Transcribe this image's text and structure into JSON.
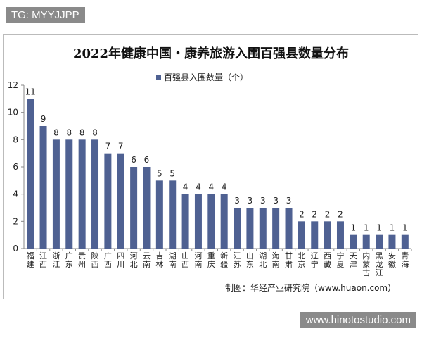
{
  "watermarks": {
    "top_left": "TG: MYYJJPP",
    "bottom_right": "www.hinotostudio.com"
  },
  "source": "制图：华经产业研究院（www.huaon.com）",
  "chart_data": {
    "type": "bar",
    "title": "2022年健康中国・康养旅游入围百强县数量分布",
    "xlabel": "",
    "ylabel": "",
    "ylim": [
      0,
      12
    ],
    "yticks": [
      0,
      2,
      4,
      6,
      8,
      10,
      12
    ],
    "grid": false,
    "legend": "top-center",
    "bar_color": "#4f6192",
    "categories": [
      "福建",
      "江西",
      "浙江",
      "广东",
      "贵州",
      "陕西",
      "广西",
      "四川",
      "河北",
      "云南",
      "吉林",
      "湖南",
      "山西",
      "河南",
      "重庆",
      "新疆",
      "江苏",
      "山东",
      "湖北",
      "海南",
      "甘肃",
      "北京",
      "辽宁",
      "西藏",
      "宁夏",
      "天津",
      "内蒙古",
      "黑龙江",
      "安徽",
      "青海"
    ],
    "series": [
      {
        "name": "百强县入围数量（个）",
        "values": [
          11,
          9,
          8,
          8,
          8,
          8,
          7,
          7,
          6,
          6,
          5,
          5,
          4,
          4,
          4,
          4,
          3,
          3,
          3,
          3,
          3,
          2,
          2,
          2,
          2,
          1,
          1,
          1,
          1,
          1
        ]
      }
    ]
  }
}
